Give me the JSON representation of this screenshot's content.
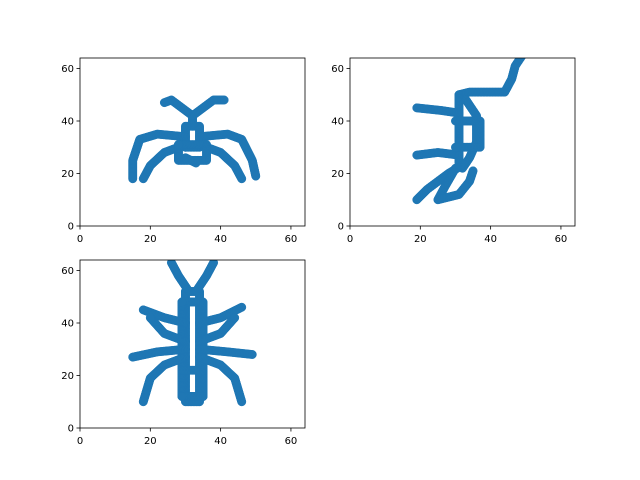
{
  "chart_data": [
    {
      "type": "scatter",
      "title": "",
      "xlabel": "",
      "ylabel": "",
      "xlim": [
        0,
        64
      ],
      "ylim": [
        0,
        64
      ],
      "xticks": [
        0,
        20,
        40,
        60
      ],
      "yticks": [
        0,
        20,
        40,
        60
      ],
      "grid": false,
      "marker_color": "#1f77b4",
      "strokes": [
        [
          [
            30,
            30
          ],
          [
            34,
            30
          ],
          [
            34,
            38
          ],
          [
            30,
            38
          ],
          [
            30,
            30
          ]
        ],
        [
          [
            32,
            38
          ],
          [
            32,
            42
          ]
        ],
        [
          [
            32,
            42
          ],
          [
            26,
            48
          ],
          [
            24,
            47
          ]
        ],
        [
          [
            32,
            42
          ],
          [
            38,
            48
          ],
          [
            41,
            48
          ]
        ],
        [
          [
            30,
            34
          ],
          [
            22,
            35
          ],
          [
            17,
            33
          ],
          [
            15,
            25
          ],
          [
            15,
            18
          ]
        ],
        [
          [
            34,
            34
          ],
          [
            42,
            35
          ],
          [
            46,
            33
          ],
          [
            49,
            25
          ],
          [
            50,
            19
          ]
        ],
        [
          [
            30,
            31
          ],
          [
            24,
            28
          ],
          [
            20,
            23
          ],
          [
            18,
            18
          ]
        ],
        [
          [
            34,
            31
          ],
          [
            40,
            28
          ],
          [
            44,
            23
          ],
          [
            46,
            18
          ]
        ],
        [
          [
            30,
            26
          ],
          [
            33,
            24
          ]
        ],
        [
          [
            28,
            31
          ],
          [
            36,
            31
          ],
          [
            36,
            25
          ],
          [
            28,
            25
          ],
          [
            28,
            31
          ]
        ]
      ]
    },
    {
      "type": "scatter",
      "title": "",
      "xlabel": "",
      "ylabel": "",
      "xlim": [
        0,
        64
      ],
      "ylim": [
        0,
        64
      ],
      "xticks": [
        0,
        20,
        40,
        60
      ],
      "yticks": [
        0,
        20,
        40,
        60
      ],
      "grid": false,
      "marker_color": "#1f77b4",
      "strokes": [
        [
          [
            31,
            50
          ],
          [
            34,
            51
          ],
          [
            44,
            51
          ],
          [
            46,
            56
          ],
          [
            47,
            61
          ],
          [
            49,
            65
          ]
        ],
        [
          [
            31,
            50
          ],
          [
            31,
            24
          ]
        ],
        [
          [
            33,
            48
          ],
          [
            36,
            42
          ],
          [
            36,
            32
          ],
          [
            34,
            26
          ],
          [
            32,
            22
          ]
        ],
        [
          [
            31,
            43
          ],
          [
            26,
            44
          ],
          [
            19,
            45
          ]
        ],
        [
          [
            31,
            27
          ],
          [
            25,
            28
          ],
          [
            19,
            27
          ]
        ],
        [
          [
            33,
            24
          ],
          [
            28,
            20
          ],
          [
            22,
            14
          ],
          [
            19,
            10
          ]
        ],
        [
          [
            30,
            22
          ],
          [
            27,
            15
          ],
          [
            25,
            10
          ],
          [
            31,
            12
          ],
          [
            34,
            17
          ],
          [
            35,
            21
          ]
        ],
        [
          [
            30,
            40
          ],
          [
            37,
            40
          ],
          [
            37,
            30
          ],
          [
            30,
            30
          ]
        ]
      ]
    },
    {
      "type": "scatter",
      "title": "",
      "xlabel": "",
      "ylabel": "",
      "xlim": [
        0,
        64
      ],
      "ylim": [
        0,
        64
      ],
      "xticks": [
        0,
        20,
        40,
        60
      ],
      "yticks": [
        0,
        20,
        40,
        60
      ],
      "grid": false,
      "marker_color": "#1f77b4",
      "strokes": [
        [
          [
            30,
            52
          ],
          [
            34,
            52
          ],
          [
            34,
            10
          ],
          [
            30,
            10
          ],
          [
            30,
            52
          ]
        ],
        [
          [
            29,
            48
          ],
          [
            35,
            48
          ],
          [
            35,
            12
          ],
          [
            29,
            12
          ],
          [
            29,
            48
          ]
        ],
        [
          [
            31,
            52
          ],
          [
            28,
            58
          ],
          [
            26,
            63
          ]
        ],
        [
          [
            33,
            52
          ],
          [
            36,
            58
          ],
          [
            38,
            63
          ]
        ],
        [
          [
            30,
            40
          ],
          [
            24,
            42
          ],
          [
            18,
            45
          ]
        ],
        [
          [
            34,
            40
          ],
          [
            40,
            42
          ],
          [
            46,
            46
          ]
        ],
        [
          [
            30,
            33
          ],
          [
            24,
            36
          ],
          [
            20,
            42
          ]
        ],
        [
          [
            34,
            33
          ],
          [
            40,
            36
          ],
          [
            44,
            42
          ]
        ],
        [
          [
            30,
            30
          ],
          [
            22,
            29
          ],
          [
            15,
            27
          ]
        ],
        [
          [
            34,
            30
          ],
          [
            42,
            29
          ],
          [
            49,
            28
          ]
        ],
        [
          [
            30,
            27
          ],
          [
            24,
            24
          ],
          [
            20,
            19
          ],
          [
            18,
            10
          ]
        ],
        [
          [
            34,
            27
          ],
          [
            40,
            24
          ],
          [
            44,
            19
          ],
          [
            46,
            10
          ]
        ],
        [
          [
            29,
            22
          ],
          [
            35,
            22
          ],
          [
            35,
            12
          ],
          [
            29,
            12
          ]
        ]
      ]
    }
  ]
}
